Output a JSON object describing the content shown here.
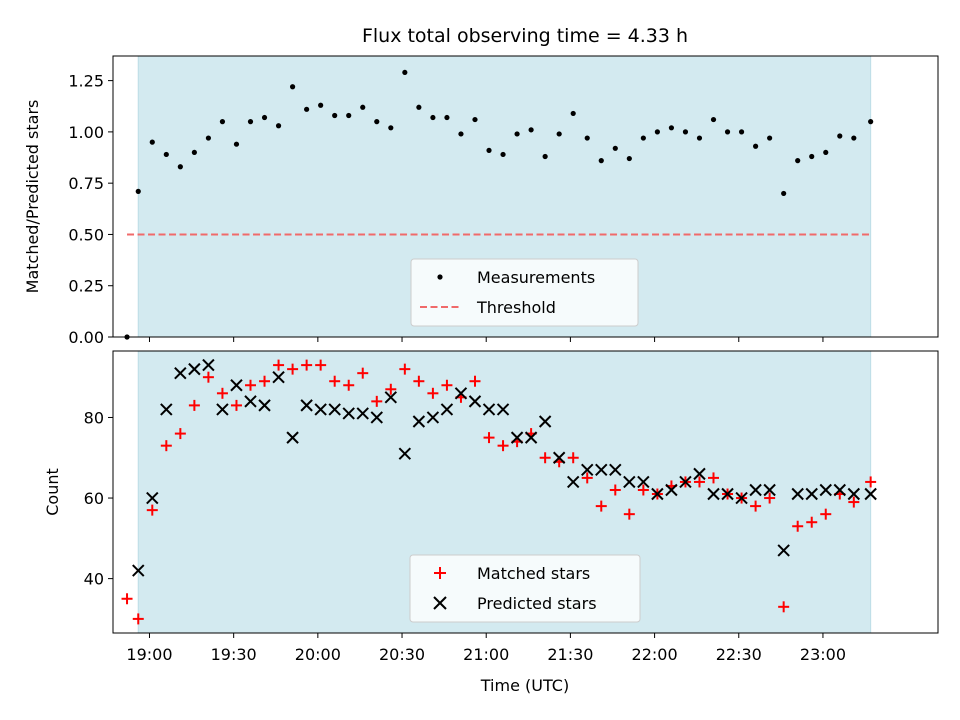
{
  "chart_data": {
    "type": "scatter",
    "title": "Flux total observing time = 4.33 h",
    "xlabel": "Time (UTC)",
    "x_ticks": [
      "19:00",
      "19:30",
      "20:00",
      "20:30",
      "21:00",
      "21:30",
      "22:00",
      "22:30",
      "23:00"
    ],
    "xlim": [
      "18:47",
      "23:41"
    ],
    "observing_window": [
      "18:56",
      "23:17"
    ],
    "shade_color": "#d3eaf0",
    "panels": [
      {
        "ylabel": "Matched/Predicted stars",
        "ylim": [
          0,
          1.37
        ],
        "y_ticks": [
          "0.00",
          "0.25",
          "0.50",
          "0.75",
          "1.00",
          "1.25"
        ],
        "threshold": {
          "name": "Threshold",
          "value": 0.5,
          "from": "18:52",
          "to": "23:17",
          "color": "#f06a6a"
        },
        "legend_position": "lower center",
        "series": [
          {
            "name": "Measurements",
            "marker": "dot",
            "color": "#000000",
            "x": [
              "18:52",
              "18:56",
              "19:01",
              "19:06",
              "19:11",
              "19:16",
              "19:21",
              "19:26",
              "19:31",
              "19:36",
              "19:41",
              "19:46",
              "19:51",
              "19:56",
              "20:01",
              "20:06",
              "20:11",
              "20:16",
              "20:21",
              "20:26",
              "20:31",
              "20:36",
              "20:41",
              "20:46",
              "20:51",
              "20:56",
              "21:01",
              "21:06",
              "21:11",
              "21:16",
              "21:21",
              "21:26",
              "21:31",
              "21:36",
              "21:41",
              "21:46",
              "21:51",
              "21:56",
              "22:01",
              "22:06",
              "22:11",
              "22:16",
              "22:21",
              "22:26",
              "22:31",
              "22:36",
              "22:41",
              "22:46",
              "22:51",
              "22:56",
              "23:01",
              "23:06",
              "23:11",
              "23:17"
            ],
            "y": [
              0.0,
              0.71,
              0.95,
              0.89,
              0.83,
              0.9,
              0.97,
              1.05,
              0.94,
              1.05,
              1.07,
              1.03,
              1.22,
              1.11,
              1.13,
              1.08,
              1.08,
              1.12,
              1.05,
              1.02,
              1.29,
              1.12,
              1.07,
              1.07,
              0.99,
              1.06,
              0.91,
              0.89,
              0.99,
              1.01,
              0.88,
              0.99,
              1.09,
              0.97,
              0.86,
              0.92,
              0.87,
              0.97,
              1.0,
              1.02,
              1.0,
              0.97,
              1.06,
              1.0,
              1.0,
              0.93,
              0.97,
              0.7,
              0.86,
              0.88,
              0.9,
              0.98,
              0.97,
              1.05
            ]
          }
        ]
      },
      {
        "ylabel": "Count",
        "ylim": [
          26.5,
          96.5
        ],
        "y_ticks": [
          "40",
          "60",
          "80"
        ],
        "legend_position": "lower center",
        "series": [
          {
            "name": "Matched stars",
            "marker": "plus",
            "color": "#ff0000",
            "x": [
              "18:52",
              "18:56",
              "19:01",
              "19:06",
              "19:11",
              "19:16",
              "19:21",
              "19:26",
              "19:31",
              "19:36",
              "19:41",
              "19:46",
              "19:51",
              "19:56",
              "20:01",
              "20:06",
              "20:11",
              "20:16",
              "20:21",
              "20:26",
              "20:31",
              "20:36",
              "20:41",
              "20:46",
              "20:51",
              "20:56",
              "21:01",
              "21:06",
              "21:11",
              "21:16",
              "21:21",
              "21:26",
              "21:31",
              "21:36",
              "21:41",
              "21:46",
              "21:51",
              "21:56",
              "22:01",
              "22:06",
              "22:11",
              "22:16",
              "22:21",
              "22:26",
              "22:31",
              "22:36",
              "22:41",
              "22:46",
              "22:51",
              "22:56",
              "23:01",
              "23:06",
              "23:11",
              "23:17"
            ],
            "y": [
              35,
              30,
              57,
              73,
              76,
              83,
              90,
              86,
              83,
              88,
              89,
              93,
              92,
              93,
              93,
              89,
              88,
              91,
              84,
              87,
              92,
              89,
              86,
              88,
              85,
              89,
              75,
              73,
              74,
              76,
              70,
              69,
              70,
              65,
              58,
              62,
              56,
              62,
              61,
              63,
              64,
              64,
              65,
              61,
              60,
              58,
              60,
              33,
              53,
              54,
              56,
              61,
              59,
              64
            ]
          },
          {
            "name": "Predicted stars",
            "marker": "x",
            "color": "#000000",
            "x": [
              "18:56",
              "19:01",
              "19:06",
              "19:11",
              "19:16",
              "19:21",
              "19:26",
              "19:31",
              "19:36",
              "19:41",
              "19:46",
              "19:51",
              "19:56",
              "20:01",
              "20:06",
              "20:11",
              "20:16",
              "20:21",
              "20:26",
              "20:31",
              "20:36",
              "20:41",
              "20:46",
              "20:51",
              "20:56",
              "21:01",
              "21:06",
              "21:11",
              "21:16",
              "21:21",
              "21:26",
              "21:31",
              "21:36",
              "21:41",
              "21:46",
              "21:51",
              "21:56",
              "22:01",
              "22:06",
              "22:11",
              "22:16",
              "22:21",
              "22:26",
              "22:31",
              "22:36",
              "22:41",
              "22:46",
              "22:51",
              "22:56",
              "23:01",
              "23:06",
              "23:11",
              "23:17"
            ],
            "y": [
              42,
              60,
              82,
              91,
              92,
              93,
              82,
              88,
              84,
              83,
              90,
              75,
              83,
              82,
              82,
              81,
              81,
              80,
              85,
              71,
              79,
              80,
              82,
              86,
              84,
              82,
              82,
              75,
              75,
              79,
              70,
              64,
              67,
              67,
              67,
              64,
              64,
              61,
              62,
              64,
              66,
              61,
              61,
              60,
              62,
              62,
              47,
              61,
              61,
              62,
              62,
              61,
              61
            ]
          }
        ]
      }
    ]
  }
}
